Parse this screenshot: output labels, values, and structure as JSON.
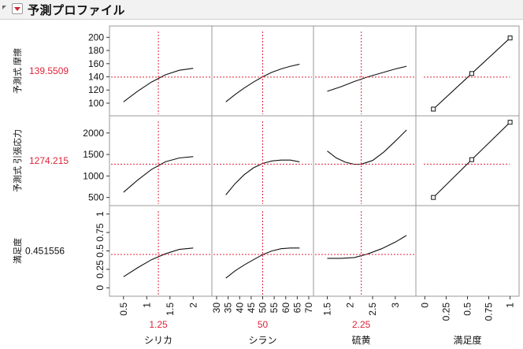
{
  "title": "予測プロファイル",
  "desirability_label": "満足度",
  "factors": [
    {
      "name": "シリカ",
      "current": "1.25",
      "value": 1.25,
      "range": [
        0.3,
        2.3
      ],
      "ticks": [
        {
          "v": 0.5,
          "label": "0.5"
        },
        {
          "v": 1,
          "label": "1"
        },
        {
          "v": 1.5,
          "label": "1.5"
        },
        {
          "v": 2,
          "label": "2"
        }
      ]
    },
    {
      "name": "シラン",
      "current": "50",
      "value": 50,
      "range": [
        30,
        70
      ],
      "ticks": [
        {
          "v": 30,
          "label": "30"
        },
        {
          "v": 35,
          "label": "35"
        },
        {
          "v": 40,
          "label": "40"
        },
        {
          "v": 45,
          "label": "45"
        },
        {
          "v": 50,
          "label": "50"
        },
        {
          "v": 55,
          "label": "55"
        },
        {
          "v": 60,
          "label": "60"
        },
        {
          "v": 65,
          "label": "65"
        },
        {
          "v": 70,
          "label": "70"
        }
      ]
    },
    {
      "name": "硫黄",
      "current": "2.25",
      "value": 2.25,
      "range": [
        1.3,
        3.35
      ],
      "ticks": [
        {
          "v": 1.5,
          "label": "1.5"
        },
        {
          "v": 2,
          "label": "2"
        },
        {
          "v": 2.5,
          "label": "2.5"
        },
        {
          "v": 3,
          "label": "3"
        }
      ]
    }
  ],
  "desirability_axis": {
    "range": [
      -0.05,
      1.05
    ],
    "ticks": [
      {
        "v": 0,
        "label": "0"
      },
      {
        "v": 0.25,
        "label": "0.25"
      },
      {
        "v": 0.5,
        "label": "0.5"
      },
      {
        "v": 0.75,
        "label": "0.75"
      },
      {
        "v": 1,
        "label": "1"
      }
    ]
  },
  "responses": [
    {
      "name": "予測式 摩擦",
      "current": "139.5509",
      "value": 139.5509,
      "value_color": "#e0233a",
      "range": [
        88,
        210
      ],
      "ticks": [
        {
          "v": 100,
          "label": "100"
        },
        {
          "v": 120,
          "label": "120"
        },
        {
          "v": 140,
          "label": "140"
        },
        {
          "v": 160,
          "label": "160"
        },
        {
          "v": 180,
          "label": "180"
        },
        {
          "v": 200,
          "label": "200"
        }
      ],
      "curves": [
        {
          "x": [
            0.5,
            0.8,
            1.1,
            1.4,
            1.7,
            2.0
          ],
          "y": [
            102,
            118,
            132,
            143,
            150,
            153
          ]
        },
        {
          "x": [
            34,
            38,
            42,
            46,
            50,
            54,
            58,
            62,
            66
          ],
          "y": [
            102,
            113,
            123,
            132,
            140,
            147,
            152,
            156,
            159
          ]
        },
        {
          "x": [
            1.5,
            1.8,
            2.1,
            2.4,
            2.7,
            3.0,
            3.25
          ],
          "y": [
            118,
            125,
            133,
            140,
            146,
            152,
            156
          ]
        }
      ],
      "desirability_points": [
        {
          "d": 0.1,
          "y": 91
        },
        {
          "d": 0.55,
          "y": 145
        },
        {
          "d": 1,
          "y": 199
        }
      ]
    },
    {
      "name": "予測式 引張応力",
      "current": "1274.215",
      "value": 1274.215,
      "value_color": "#e0233a",
      "range": [
        420,
        2290
      ],
      "ticks": [
        {
          "v": 500,
          "label": "500"
        },
        {
          "v": 1000,
          "label": "1000"
        },
        {
          "v": 1500,
          "label": "1500"
        },
        {
          "v": 2000,
          "label": "2000"
        }
      ],
      "curves": [
        {
          "x": [
            0.5,
            0.8,
            1.1,
            1.4,
            1.7,
            2.0
          ],
          "y": [
            620,
            900,
            1150,
            1330,
            1420,
            1450
          ]
        },
        {
          "x": [
            34,
            38,
            42,
            46,
            50,
            54,
            58,
            62,
            66
          ],
          "y": [
            560,
            820,
            1030,
            1190,
            1290,
            1350,
            1370,
            1370,
            1330
          ]
        },
        {
          "x": [
            1.5,
            1.7,
            1.9,
            2.1,
            2.25,
            2.5,
            2.75,
            3.0,
            3.25
          ],
          "y": [
            1580,
            1420,
            1320,
            1270,
            1275,
            1360,
            1560,
            1810,
            2070
          ]
        }
      ],
      "desirability_points": [
        {
          "d": 0.1,
          "y": 500
        },
        {
          "d": 0.55,
          "y": 1380
        },
        {
          "d": 1,
          "y": 2250
        }
      ]
    },
    {
      "name": "満足度",
      "current": "0.451556",
      "value": 0.451556,
      "value_color": "#111111",
      "range": [
        -0.05,
        1.05
      ],
      "ticks": [
        {
          "v": 0,
          "label": "0"
        },
        {
          "v": 0.25,
          "label": "0.25"
        },
        {
          "v": 0.5,
          "label": "0.5"
        },
        {
          "v": 0.75,
          "label": "0.75"
        },
        {
          "v": 1,
          "label": "1"
        }
      ],
      "curves": [
        {
          "x": [
            0.5,
            0.8,
            1.1,
            1.4,
            1.7,
            2.0
          ],
          "y": [
            0.15,
            0.27,
            0.38,
            0.46,
            0.52,
            0.54
          ]
        },
        {
          "x": [
            34,
            38,
            42,
            46,
            50,
            54,
            58,
            62,
            66
          ],
          "y": [
            0.13,
            0.23,
            0.31,
            0.38,
            0.45,
            0.5,
            0.53,
            0.54,
            0.54
          ]
        },
        {
          "x": [
            1.5,
            1.8,
            2.1,
            2.4,
            2.7,
            3.0,
            3.25
          ],
          "y": [
            0.4,
            0.4,
            0.41,
            0.46,
            0.53,
            0.62,
            0.71
          ]
        }
      ],
      "desirability_points": []
    }
  ]
}
